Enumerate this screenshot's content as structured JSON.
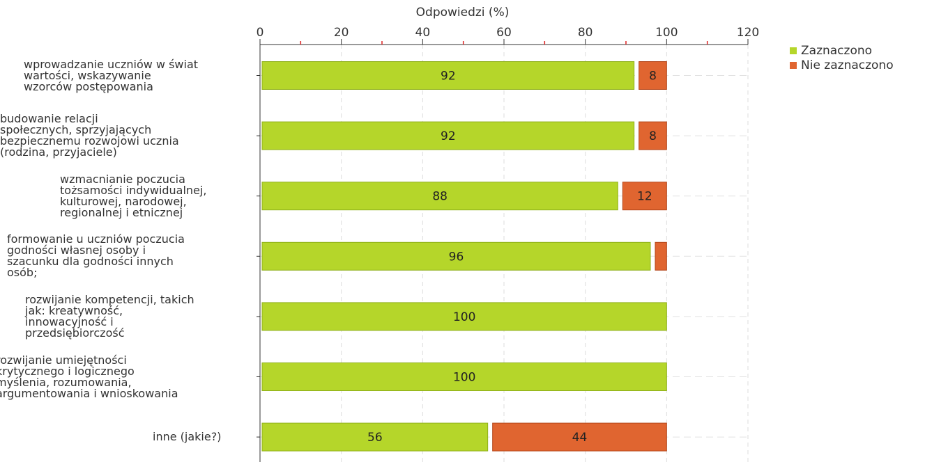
{
  "chart_data": {
    "type": "bar",
    "orientation": "horizontal",
    "stacked": true,
    "xlabel": "Odpowiedzi (%)",
    "xlim": [
      0,
      120
    ],
    "x_ticks": [
      "0",
      "20",
      "40",
      "60",
      "80",
      "100",
      "120"
    ],
    "grid": true,
    "legend_position": "right",
    "categories": [
      "wprowadzanie uczniów w świat wartości, wskazywanie wzorców postępowania",
      "budowanie relacji społecznych, sprzyjających bezpiecznemu rozwojowi ucznia (rodzina, przyjaciele)",
      "wzmacnianie poczucia tożsamości indywidualnej, kulturowej, narodowej, regionalnej i etnicznej",
      "formowanie u uczniów poczucia godności własnej osoby i szacunku dla godności innych osób;",
      "rozwijanie kompetencji, takich jak: kreatywność, innowacyjność i przedsiębiorczość",
      "rozwijanie umiejętności krytycznego i logicznego myślenia, rozumowania, argumentowania i wnioskowania",
      "inne (jakie?)"
    ],
    "series": [
      {
        "name": "Zaznaczono",
        "color": "#b5d62a",
        "border": "#8fb01a",
        "values": [
          92,
          92,
          88,
          96,
          100,
          100,
          56
        ],
        "labels": [
          "92",
          "92",
          "88",
          "96",
          "100",
          "100",
          "56"
        ]
      },
      {
        "name": "Nie zaznaczono",
        "color": "#e06530",
        "border": "#b3461a",
        "values": [
          8,
          8,
          12,
          4,
          0,
          0,
          44
        ],
        "labels": [
          "8",
          "8",
          "12",
          "",
          "",
          "",
          "44"
        ]
      }
    ]
  }
}
